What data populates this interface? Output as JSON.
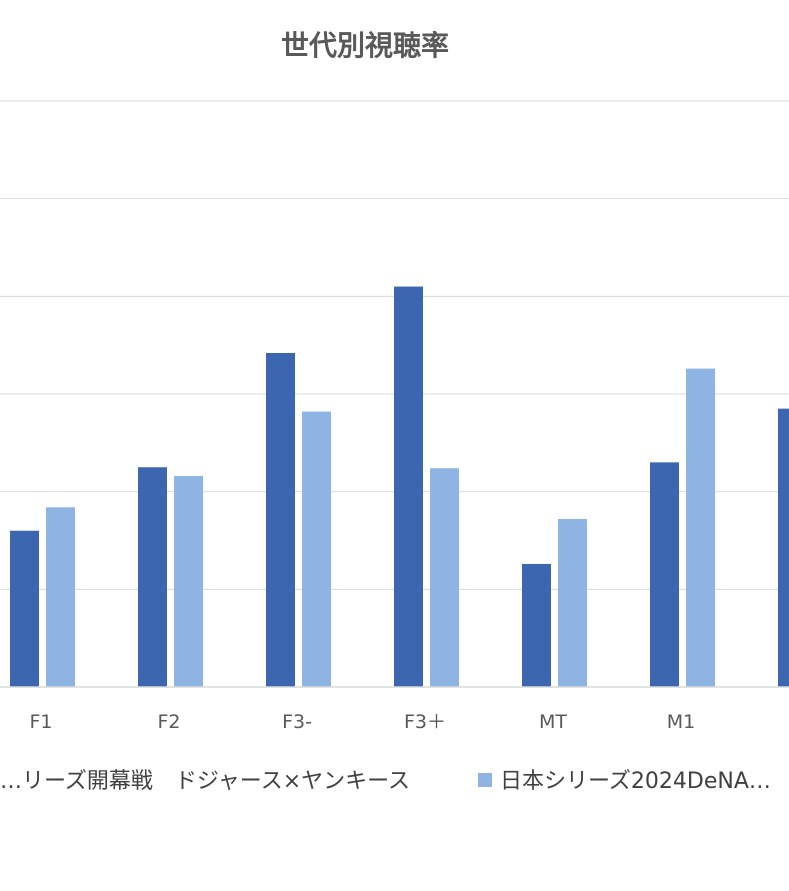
{
  "chart_data": {
    "type": "bar",
    "title": "世代別視聴率",
    "categories": [
      "F1",
      "F2",
      "F3-",
      "F3＋",
      "MT",
      "M1",
      ""
    ],
    "series": [
      {
        "name": "…リーズ開幕戦　ドジャース×ヤンキース",
        "color": "#3C66B0",
        "values": [
          1.6,
          2.25,
          3.42,
          4.1,
          1.26,
          2.3,
          2.85
        ]
      },
      {
        "name": "日本シリーズ2024DeNA…",
        "color": "#8DB4E2",
        "values": [
          1.84,
          2.16,
          2.82,
          2.24,
          1.72,
          3.26,
          null
        ]
      }
    ],
    "ylim": [
      0,
      6
    ],
    "grid": true,
    "legend": "bottom"
  }
}
